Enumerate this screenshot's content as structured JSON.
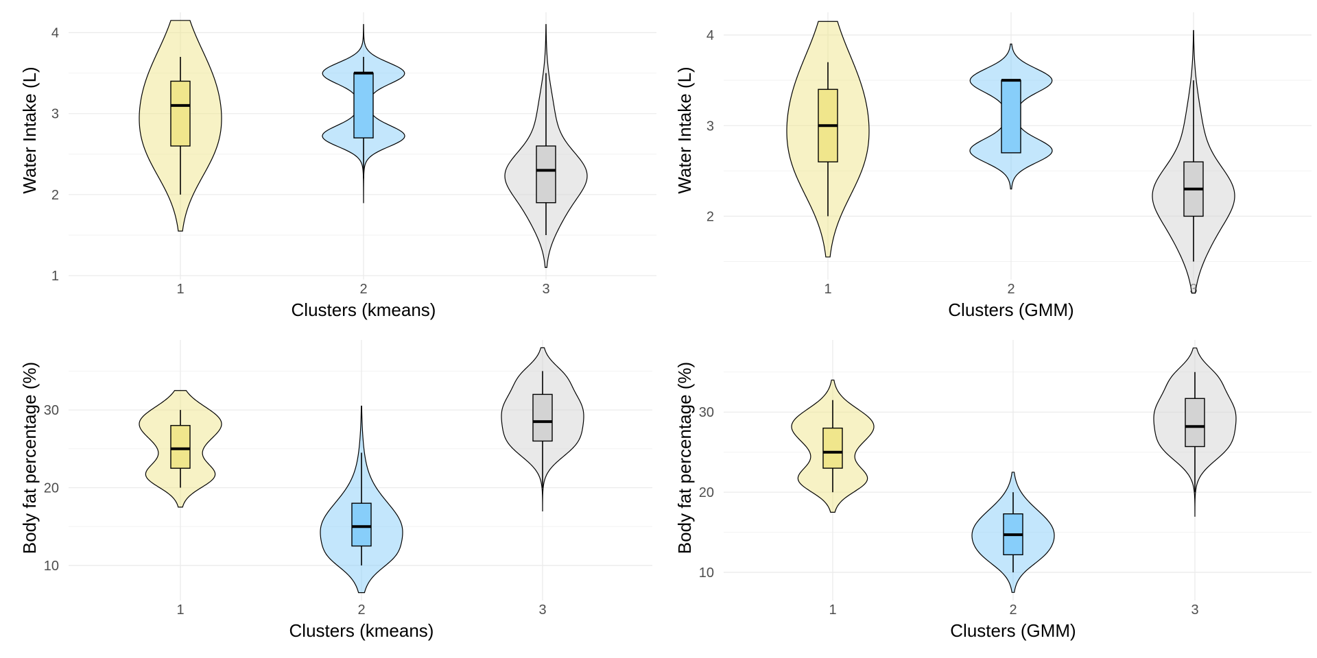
{
  "colors": {
    "cluster_1": "#F0E68C",
    "cluster_2": "#87CEFA",
    "cluster_3": "#D3D3D3",
    "outline": "#000000"
  },
  "chart_data": [
    {
      "id": "water-kmeans",
      "type": "violin",
      "xlabel": "Clusters (kmeans)",
      "ylabel": "Water Intake (L)",
      "categories": [
        "1",
        "2",
        "3"
      ],
      "ylim": [
        0.95,
        4.25
      ],
      "yticks": [
        1,
        2,
        3,
        4
      ],
      "grid": true,
      "violins": [
        {
          "range": [
            1.55,
            4.15
          ],
          "modes": [
            [
              3.3,
              0.55,
              0.55
            ],
            [
              2.55,
              0.45,
              0.4
            ]
          ],
          "box": {
            "whisker_low": 2.0,
            "q1": 2.6,
            "median": 3.1,
            "q3": 3.4,
            "whisker_high": 3.7
          }
        },
        {
          "range": [
            1.9,
            4.1
          ],
          "modes": [
            [
              3.5,
              0.13,
              1.0
            ],
            [
              2.72,
              0.13,
              1.0
            ],
            [
              3.1,
              0.35,
              0.12
            ]
          ],
          "box": {
            "whisker_low": 2.2,
            "q1": 2.7,
            "median": 3.5,
            "q3": 3.5,
            "whisker_high": 3.7
          }
        },
        {
          "range": [
            1.1,
            4.1
          ],
          "modes": [
            [
              2.25,
              0.28,
              0.85
            ],
            [
              1.75,
              0.28,
              0.3
            ],
            [
              2.9,
              0.4,
              0.2
            ]
          ],
          "box": {
            "whisker_low": 1.5,
            "q1": 1.9,
            "median": 2.3,
            "q3": 2.6,
            "whisker_high": 3.5
          }
        }
      ]
    },
    {
      "id": "water-gmm",
      "type": "violin",
      "xlabel": "Clusters (GMM)",
      "ylabel": "Water Intake (L)",
      "categories": [
        "1",
        "2",
        "3"
      ],
      "ylim": [
        1.3,
        4.25
      ],
      "yticks": [
        2,
        3,
        4
      ],
      "grid": true,
      "violins": [
        {
          "range": [
            1.55,
            4.15
          ],
          "modes": [
            [
              3.3,
              0.55,
              0.55
            ],
            [
              2.55,
              0.45,
              0.4
            ]
          ],
          "box": {
            "whisker_low": 2.0,
            "q1": 2.6,
            "median": 3.0,
            "q3": 3.4,
            "whisker_high": 3.7
          }
        },
        {
          "range": [
            2.3,
            3.9
          ],
          "modes": [
            [
              3.5,
              0.13,
              1.0
            ],
            [
              2.72,
              0.13,
              1.0
            ],
            [
              3.1,
              0.35,
              0.12
            ]
          ],
          "box": {
            "whisker_low": 2.7,
            "q1": 2.7,
            "median": 3.5,
            "q3": 3.5,
            "whisker_high": 3.5
          }
        },
        {
          "range": [
            1.15,
            4.05
          ],
          "modes": [
            [
              2.25,
              0.3,
              0.85
            ],
            [
              1.75,
              0.3,
              0.3
            ],
            [
              2.9,
              0.4,
              0.2
            ]
          ],
          "box": {
            "whisker_low": 1.5,
            "q1": 2.0,
            "median": 2.3,
            "q3": 2.6,
            "whisker_high": 3.5
          }
        }
      ]
    },
    {
      "id": "fat-kmeans",
      "type": "violin",
      "xlabel": "Clusters (kmeans)",
      "ylabel": "Body fat percentage (%)",
      "categories": [
        "1",
        "2",
        "3"
      ],
      "ylim": [
        5.5,
        39
      ],
      "yticks": [
        10,
        20,
        30
      ],
      "grid": true,
      "violins": [
        {
          "range": [
            17.5,
            32.5
          ],
          "modes": [
            [
              28.5,
              2.0,
              1.0
            ],
            [
              21.5,
              1.5,
              0.8
            ],
            [
              25.0,
              3.5,
              0.45
            ]
          ],
          "box": {
            "whisker_low": 20,
            "q1": 22.5,
            "median": 25,
            "q3": 28,
            "whisker_high": 30
          }
        },
        {
          "range": [
            6.5,
            30.5
          ],
          "modes": [
            [
              14.5,
              3.5,
              0.95
            ],
            [
              11.0,
              1.5,
              0.2
            ],
            [
              21.0,
              4.0,
              0.08
            ]
          ],
          "box": {
            "whisker_low": 10,
            "q1": 12.5,
            "median": 15,
            "q3": 18,
            "whisker_high": 24.5
          }
        },
        {
          "range": [
            17.0,
            38.0
          ],
          "modes": [
            [
              30.0,
              3.0,
              0.95
            ],
            [
              25.5,
              2.0,
              0.5
            ],
            [
              34.5,
              1.5,
              0.25
            ]
          ],
          "box": {
            "whisker_low": 20,
            "q1": 26,
            "median": 28.5,
            "q3": 32,
            "whisker_high": 35
          }
        }
      ]
    },
    {
      "id": "fat-gmm",
      "type": "violin",
      "xlabel": "Clusters (GMM)",
      "ylabel": "Body fat percentage (%)",
      "categories": [
        "1",
        "2",
        "3"
      ],
      "ylim": [
        6.5,
        39
      ],
      "yticks": [
        10,
        20,
        30
      ],
      "grid": true,
      "violins": [
        {
          "range": [
            17.5,
            34.0
          ],
          "modes": [
            [
              28.5,
              2.0,
              1.0
            ],
            [
              21.5,
              1.5,
              0.8
            ],
            [
              25.0,
              3.5,
              0.45
            ]
          ],
          "box": {
            "whisker_low": 20,
            "q1": 23,
            "median": 25,
            "q3": 28,
            "whisker_high": 31.5
          }
        },
        {
          "range": [
            7.5,
            22.5
          ],
          "modes": [
            [
              15.0,
              2.8,
              1.0
            ],
            [
              12.0,
              1.5,
              0.2
            ]
          ],
          "box": {
            "whisker_low": 10,
            "q1": 12.2,
            "median": 14.7,
            "q3": 17.3,
            "whisker_high": 20
          }
        },
        {
          "range": [
            17.0,
            38.0
          ],
          "modes": [
            [
              30.0,
              3.0,
              0.95
            ],
            [
              25.5,
              2.0,
              0.5
            ],
            [
              34.5,
              1.5,
              0.25
            ]
          ],
          "box": {
            "whisker_low": 20,
            "q1": 25.7,
            "median": 28.2,
            "q3": 31.7,
            "whisker_high": 35
          }
        }
      ]
    }
  ]
}
